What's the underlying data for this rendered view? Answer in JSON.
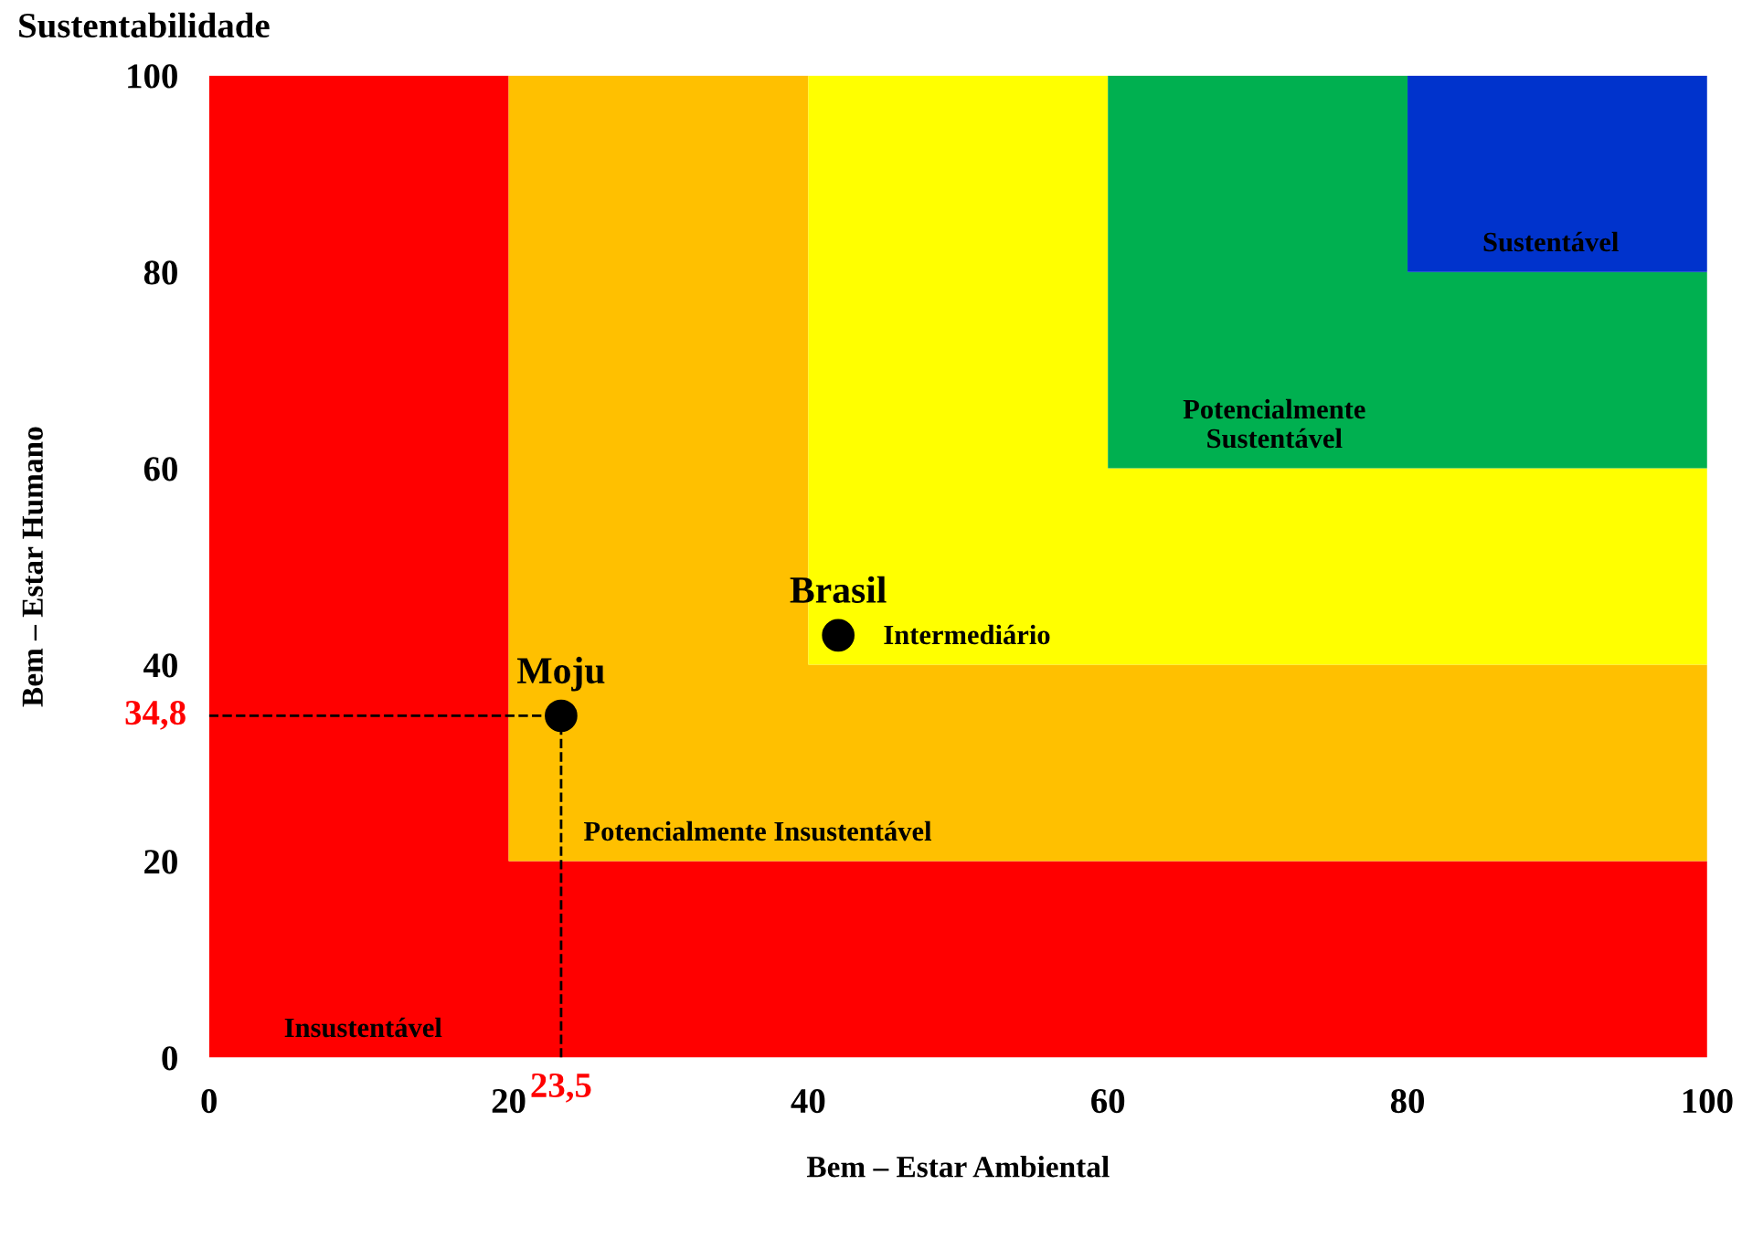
{
  "chart_data": {
    "type": "scatter",
    "title": "Sustentabilidade",
    "xlabel": "Bem – Estar Ambiental",
    "ylabel": "Bem – Estar Humano",
    "xlim": [
      0,
      100
    ],
    "ylim": [
      0,
      100
    ],
    "xticks": [
      0,
      20,
      40,
      60,
      80,
      100
    ],
    "yticks": [
      0,
      20,
      40,
      60,
      80,
      100
    ],
    "grid": false,
    "legend": false,
    "marker": "circle",
    "ref_lines": [
      {
        "axis": "y",
        "value": 34.8,
        "label": "34,8",
        "color": "#000000",
        "line_style": "dashed"
      },
      {
        "axis": "x",
        "value": 23.5,
        "label": "23,5",
        "color": "#000000",
        "line_style": "dashed"
      }
    ],
    "stacked": true,
    "series": [
      {
        "type": "area",
        "marker": "none",
        "name": "Insustentável",
        "color": "#ff0000",
        "x": [
          0,
          20,
          20,
          40,
          40,
          60,
          60,
          80,
          80,
          100
        ],
        "values": [
          100,
          100,
          20,
          20,
          20,
          20,
          20,
          20,
          20,
          20
        ]
      },
      {
        "type": "area",
        "marker": "none",
        "name": "Potencialmente Insustentável",
        "color": "#ffc000",
        "x": [
          0,
          20,
          20,
          40,
          40,
          60,
          60,
          80,
          80,
          100
        ],
        "values": [
          0,
          0,
          80,
          80,
          20,
          20,
          20,
          20,
          20,
          20
        ]
      },
      {
        "type": "area",
        "marker": "none",
        "name": "Intermediário",
        "color": "#ffff00",
        "x": [
          0,
          20,
          20,
          40,
          40,
          60,
          60,
          80,
          80,
          100
        ],
        "values": [
          0,
          0,
          0,
          0,
          60,
          60,
          20,
          20,
          20,
          20
        ]
      },
      {
        "type": "area",
        "marker": "none",
        "name": "Potencialmente\nSustentável",
        "color": "#00b050",
        "x": [
          0,
          20,
          20,
          40,
          40,
          60,
          60,
          80,
          80,
          100
        ],
        "values": [
          0,
          0,
          0,
          0,
          0,
          0,
          40,
          40,
          20,
          20
        ]
      },
      {
        "type": "area",
        "marker": "none",
        "name": "Sustentável",
        "color": "#0033cc",
        "x": [
          0,
          20,
          20,
          40,
          40,
          60,
          60,
          80,
          80,
          100
        ],
        "values": [
          0,
          0,
          0,
          0,
          0,
          0,
          0,
          0,
          20,
          20
        ]
      },
      {
        "name": "Moju",
        "color": "#000000",
        "x": [
          23.5
        ],
        "values": [
          34.8
        ]
      },
      {
        "name": "Brasil",
        "color": "#000000",
        "x": [
          42
        ],
        "values": [
          43
        ]
      }
    ]
  }
}
